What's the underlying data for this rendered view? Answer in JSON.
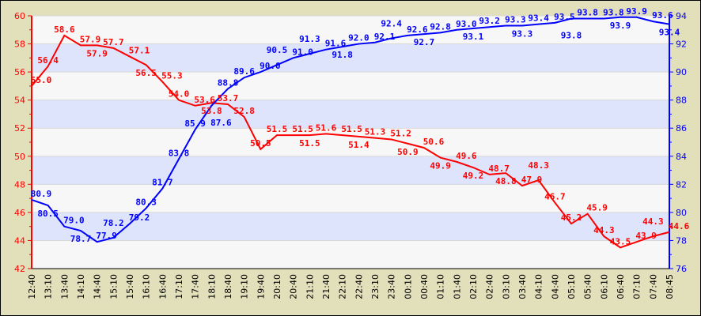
{
  "chart_data": {
    "type": "line",
    "title": "",
    "x": [
      "12:40",
      "13:10",
      "13:40",
      "14:10",
      "14:40",
      "15:10",
      "15:40",
      "16:10",
      "16:40",
      "17:10",
      "17:40",
      "18:10",
      "18:40",
      "19:10",
      "19:40",
      "20:10",
      "20:40",
      "21:10",
      "21:40",
      "22:10",
      "22:40",
      "23:10",
      "23:40",
      "00:10",
      "00:40",
      "01:10",
      "01:40",
      "02:10",
      "02:40",
      "03:10",
      "03:40",
      "04:10",
      "04:40",
      "05:10",
      "05:40",
      "06:10",
      "06:40",
      "07:10",
      "07:40",
      "08:45"
    ],
    "y_left": {
      "range": [
        42,
        60
      ],
      "ticks": [
        42,
        44,
        46,
        48,
        50,
        52,
        54,
        56,
        58,
        60
      ],
      "color": "#ff0000"
    },
    "y_right": {
      "range": [
        76,
        94
      ],
      "ticks": [
        76,
        78,
        80,
        82,
        84,
        86,
        88,
        90,
        92,
        94
      ],
      "color": "#0000ff"
    },
    "grid": true,
    "series": [
      {
        "name": "red",
        "axis": "left",
        "color": "#ff0000",
        "values": [
          55.0,
          56.4,
          58.6,
          57.9,
          57.9,
          57.7,
          57.1,
          56.5,
          55.3,
          54.0,
          53.6,
          53.8,
          53.7,
          52.8,
          50.5,
          51.5,
          51.5,
          51.5,
          51.6,
          51.5,
          51.4,
          51.3,
          51.2,
          50.9,
          50.6,
          49.9,
          49.6,
          49.2,
          48.7,
          48.8,
          47.9,
          48.3,
          46.7,
          45.2,
          45.9,
          44.3,
          43.5,
          43.9,
          44.3,
          44.6
        ]
      },
      {
        "name": "blue",
        "axis": "right",
        "color": "#0000ff",
        "values": [
          80.9,
          80.5,
          79.0,
          78.7,
          77.9,
          78.2,
          79.2,
          80.3,
          81.7,
          83.8,
          85.9,
          87.6,
          88.8,
          89.6,
          90.0,
          90.5,
          91.0,
          91.3,
          91.6,
          91.8,
          92.0,
          92.1,
          92.4,
          92.6,
          92.7,
          92.8,
          93.0,
          93.1,
          93.2,
          93.3,
          93.3,
          93.4,
          93.5,
          93.8,
          93.8,
          93.8,
          93.9,
          93.9,
          93.6,
          93.4
        ]
      }
    ]
  }
}
